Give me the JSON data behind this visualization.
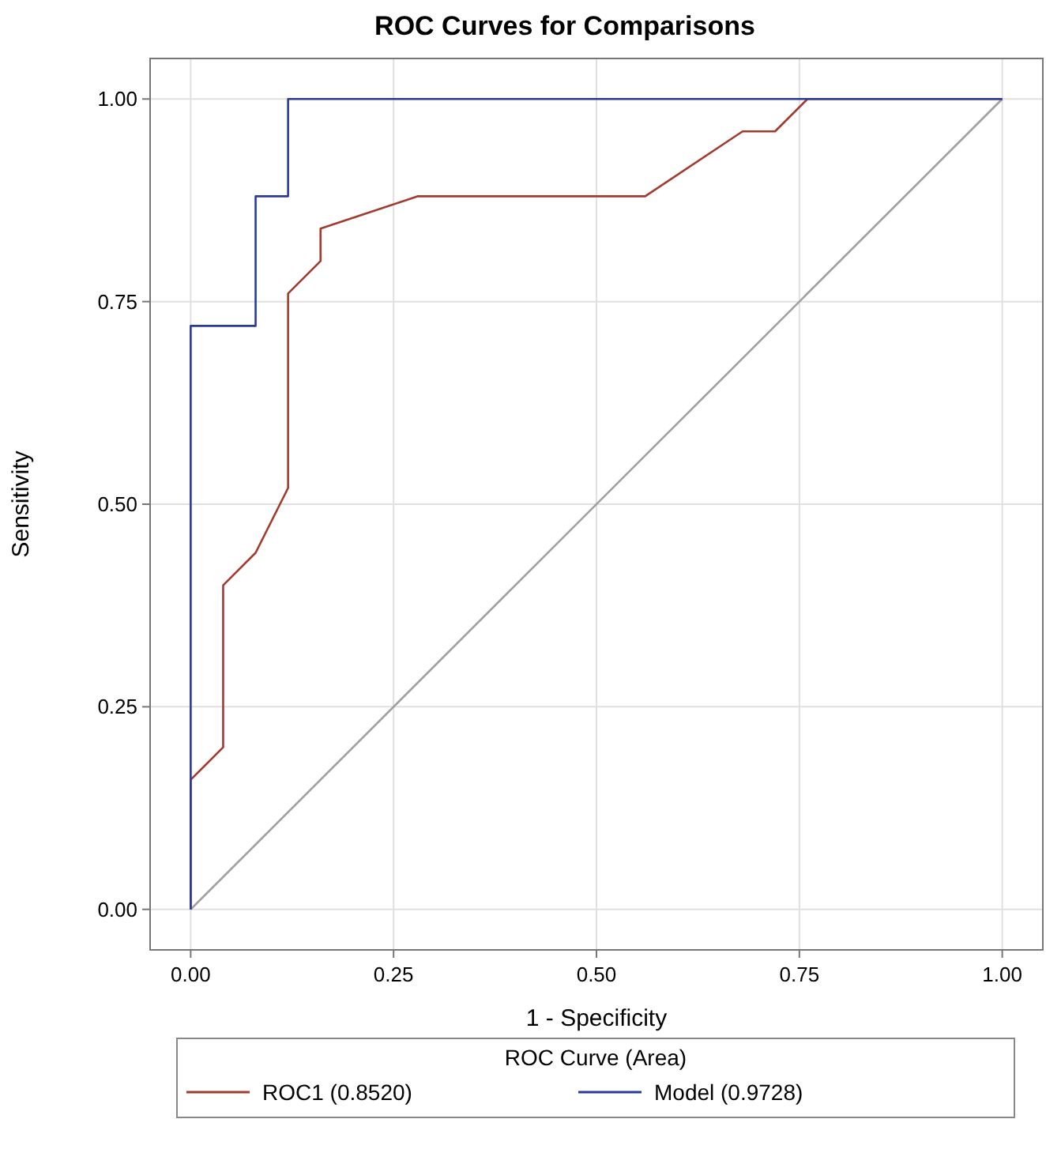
{
  "chart_data": {
    "type": "line",
    "title": "ROC Curves for Comparisons",
    "xlabel": "1 - Specificity",
    "ylabel": "Sensitivity",
    "legend_title": "ROC Curve (Area)",
    "legend": "bottom",
    "grid": true,
    "marker": "none",
    "line_style": "solid",
    "xlim": [
      -0.05,
      1.05
    ],
    "ylim": [
      -0.05,
      1.05
    ],
    "xticks": [
      {
        "value": 0,
        "label": "0.00"
      },
      {
        "value": 0.25,
        "label": "0.25"
      },
      {
        "value": 0.5,
        "label": "0.50"
      },
      {
        "value": 0.75,
        "label": "0.75"
      },
      {
        "value": 1,
        "label": "1.00"
      }
    ],
    "yticks": [
      {
        "value": 0,
        "label": "0.00"
      },
      {
        "value": 0.25,
        "label": "0.25"
      },
      {
        "value": 0.5,
        "label": "0.50"
      },
      {
        "value": 0.75,
        "label": "0.75"
      },
      {
        "value": 1,
        "label": "1.00"
      }
    ],
    "series": [
      {
        "color": "#a0a0a0",
        "x": [
          0,
          1
        ],
        "values": [
          0,
          1
        ]
      },
      {
        "name": "ROC1 (0.8520)",
        "color": "#a23a2e",
        "x": [
          0,
          0,
          0.04,
          0.04,
          0.08,
          0.12,
          0.12,
          0.16,
          0.16,
          0.28,
          0.56,
          0.68,
          0.72,
          0.76,
          1
        ],
        "values": [
          0,
          0.16,
          0.2,
          0.4,
          0.44,
          0.52,
          0.76,
          0.8,
          0.84,
          0.88,
          0.88,
          0.96,
          0.96,
          1,
          1
        ]
      },
      {
        "name": "Model (0.9728)",
        "color": "#2a3a9a",
        "x": [
          0,
          0,
          0.08,
          0.08,
          0.12,
          0.12,
          1
        ],
        "values": [
          0,
          0.72,
          0.72,
          0.88,
          0.88,
          1,
          1
        ]
      }
    ]
  }
}
